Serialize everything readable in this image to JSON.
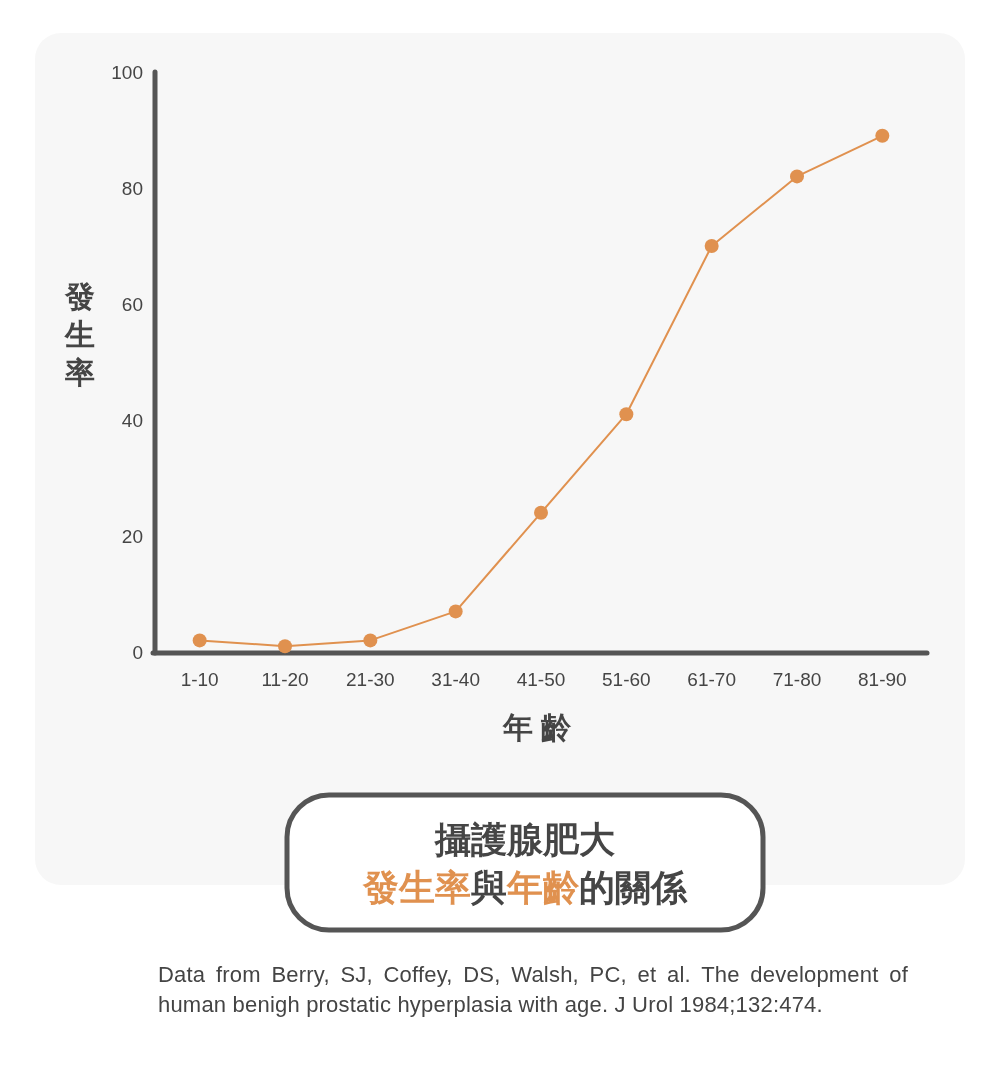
{
  "chart_data": {
    "type": "line",
    "title": "攝護腺肥大",
    "subtitle": "發生率與年齡的關係",
    "xlabel": "年齡",
    "ylabel": "發生率",
    "categories": [
      "1-10",
      "11-20",
      "21-30",
      "31-40",
      "41-50",
      "51-60",
      "61-70",
      "71-80",
      "81-90"
    ],
    "values": [
      2,
      1,
      2,
      7,
      24,
      41,
      70,
      82,
      89
    ],
    "color": "#e0914f",
    "ylim": [
      0,
      100
    ],
    "yticks": [
      0,
      20,
      40,
      60,
      80,
      100
    ],
    "marker": "circle",
    "line_style": "solid",
    "annotations": [
      "Data from Berry, SJ, Coffey, DS, Walsh, PC, et al. The development of human benigh prostatic hyperplasia with age. J Urol 1984;132:474."
    ]
  }
}
